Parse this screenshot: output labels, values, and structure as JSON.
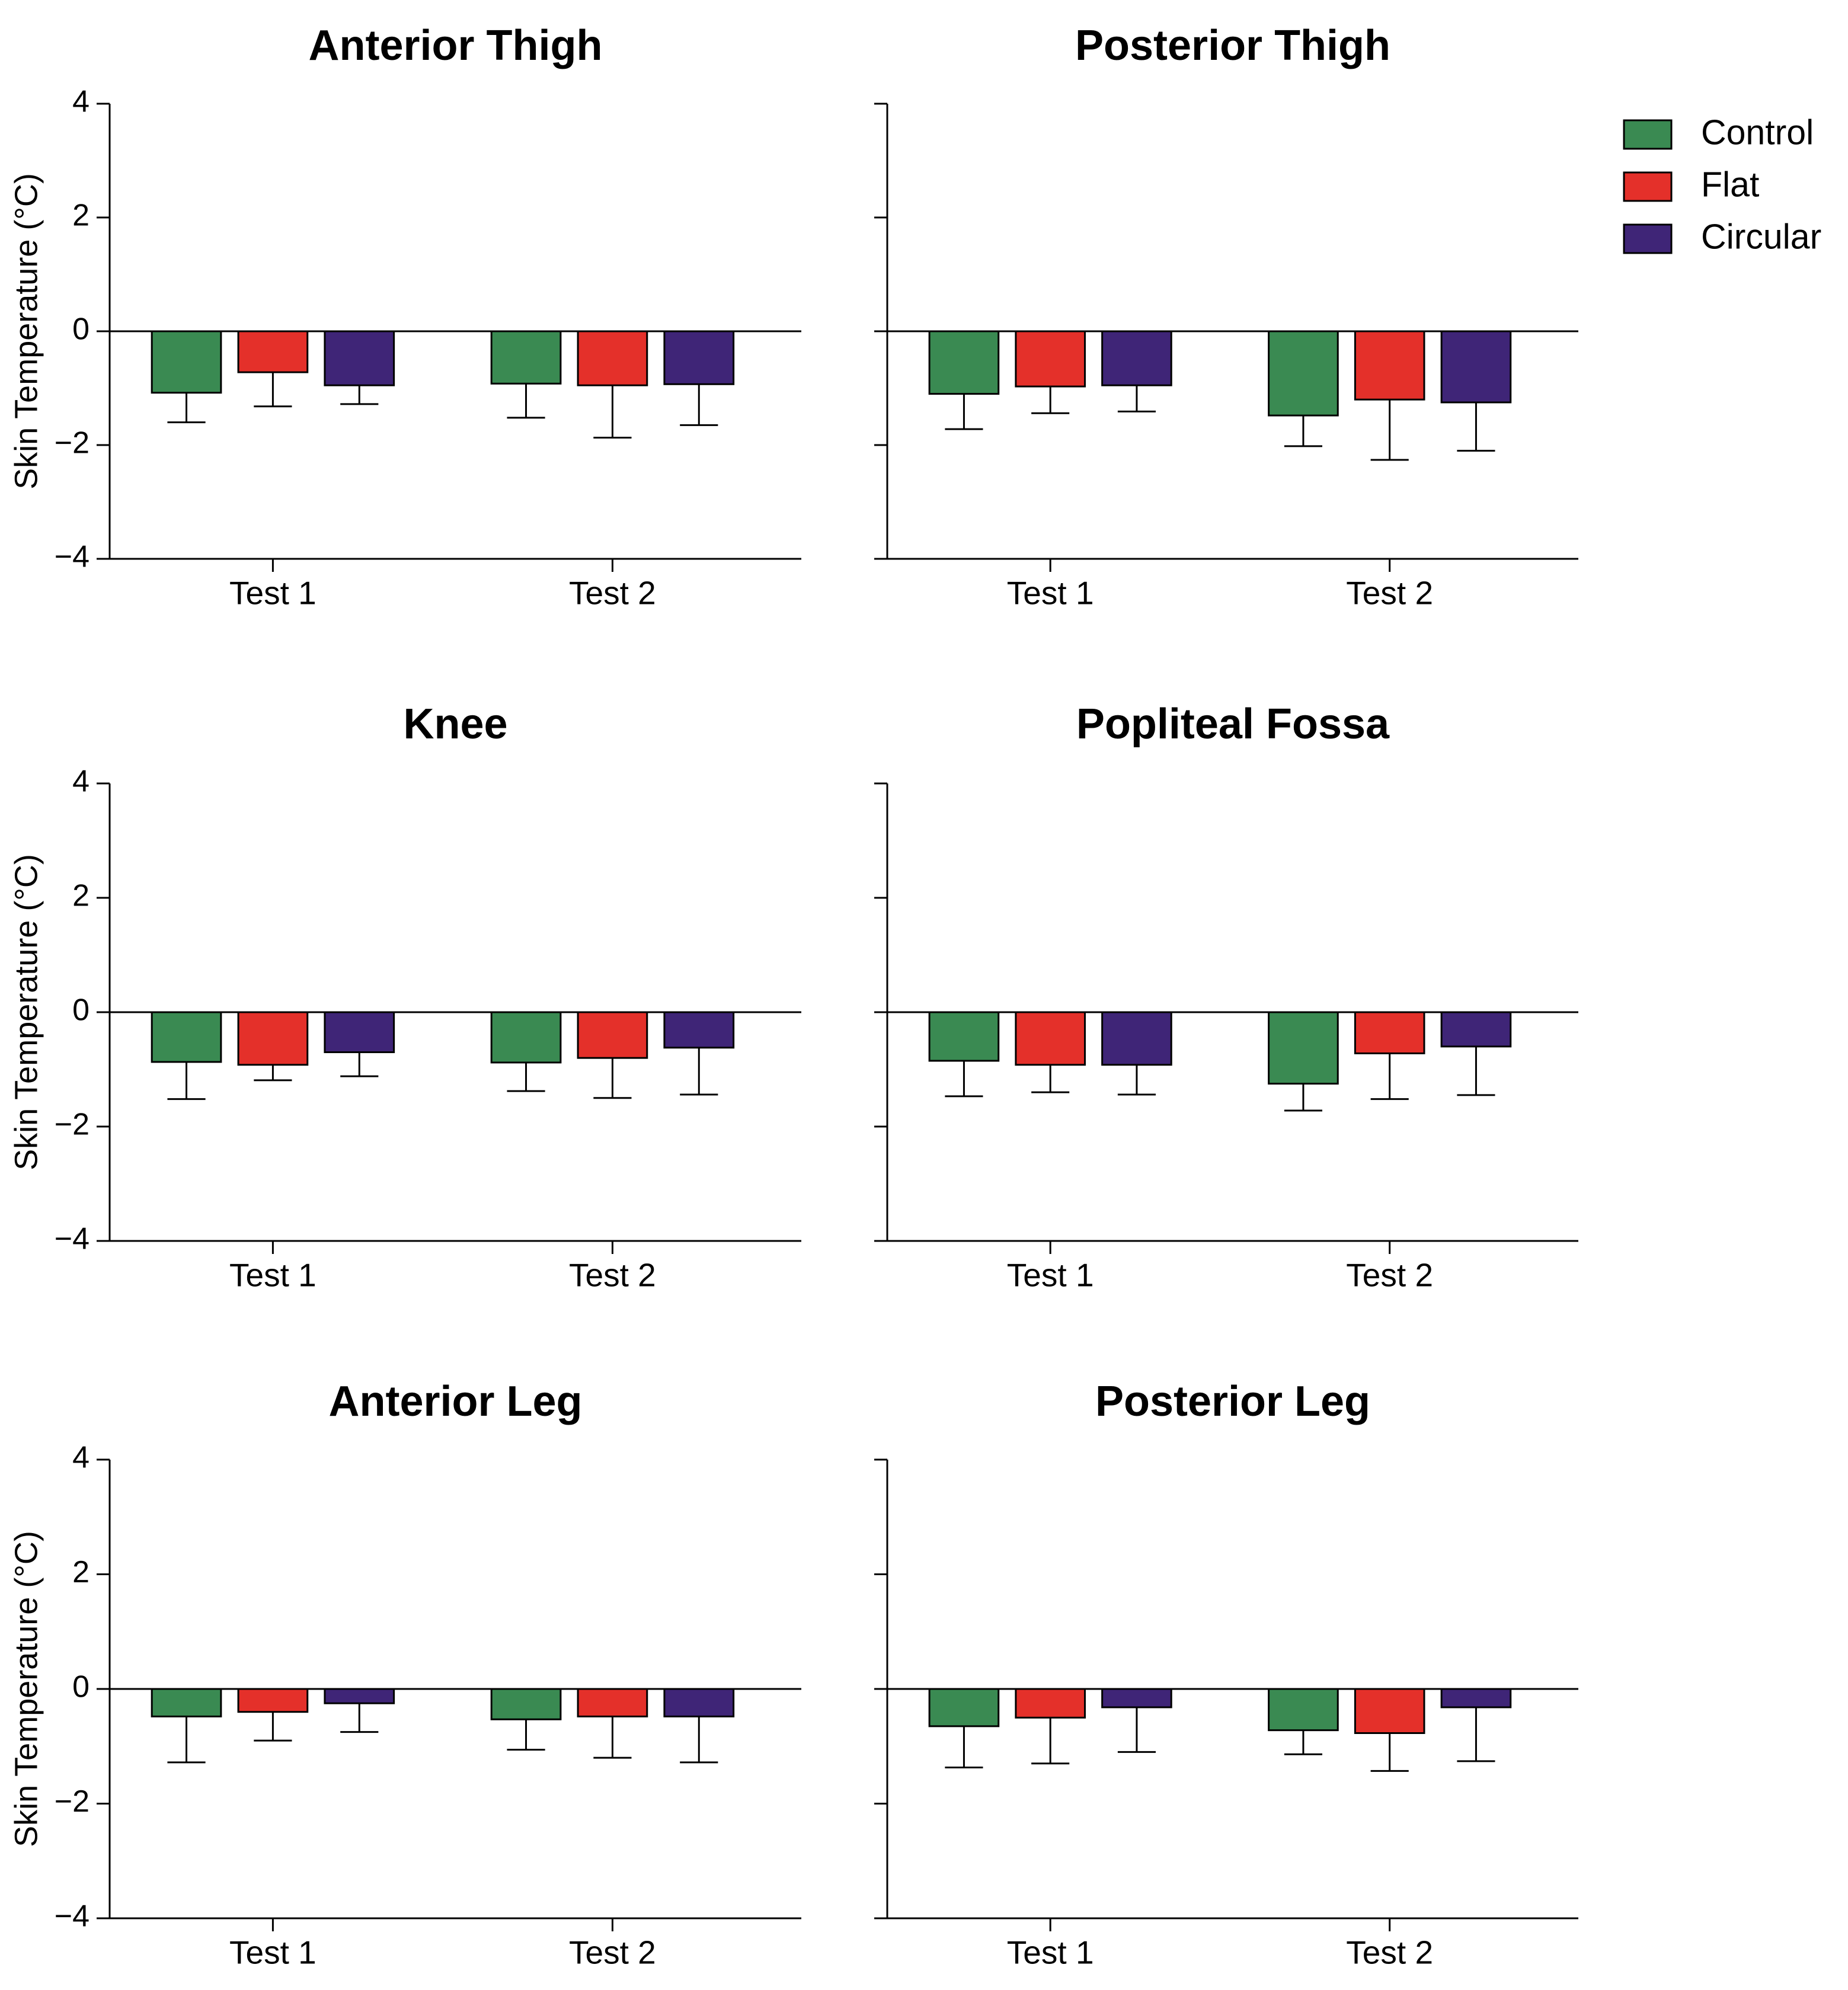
{
  "chart_data": {
    "type": "bar",
    "layout": "3x2 grid of panels",
    "ylabel": "Skin Temperature (°C)",
    "ylim": [
      -4,
      4
    ],
    "yticks": [
      4,
      2,
      0,
      -2,
      -4
    ],
    "ytick_labels": [
      "4",
      "2",
      "0",
      "−2",
      "−4"
    ],
    "categories": [
      "Test 1",
      "Test 2"
    ],
    "legend": {
      "placement": "top-right",
      "entries": [
        {
          "name": "Control",
          "color": "#3a8a52"
        },
        {
          "name": "Flat",
          "color": "#e4302a"
        },
        {
          "name": "Circular",
          "color": "#3f2577"
        }
      ]
    },
    "panels": [
      {
        "title": "Anterior Thigh",
        "series": [
          {
            "name": "Control",
            "values": [
              -1.08,
              -0.92
            ],
            "errors": [
              0.52,
              0.6
            ]
          },
          {
            "name": "Flat",
            "values": [
              -0.72,
              -0.95
            ],
            "errors": [
              0.6,
              0.92
            ]
          },
          {
            "name": "Circular",
            "values": [
              -0.95,
              -0.93
            ],
            "errors": [
              0.33,
              0.72
            ]
          }
        ]
      },
      {
        "title": "Posterior Thigh",
        "series": [
          {
            "name": "Control",
            "values": [
              -1.1,
              -1.48
            ],
            "errors": [
              0.62,
              0.54
            ]
          },
          {
            "name": "Flat",
            "values": [
              -0.97,
              -1.2
            ],
            "errors": [
              0.47,
              1.06
            ]
          },
          {
            "name": "Circular",
            "values": [
              -0.95,
              -1.25
            ],
            "errors": [
              0.46,
              0.85
            ]
          }
        ]
      },
      {
        "title": "Knee",
        "series": [
          {
            "name": "Control",
            "values": [
              -0.87,
              -0.88
            ],
            "errors": [
              0.65,
              0.5
            ]
          },
          {
            "name": "Flat",
            "values": [
              -0.92,
              -0.8
            ],
            "errors": [
              0.27,
              0.7
            ]
          },
          {
            "name": "Circular",
            "values": [
              -0.7,
              -0.62
            ],
            "errors": [
              0.42,
              0.82
            ]
          }
        ]
      },
      {
        "title": "Popliteal Fossa",
        "series": [
          {
            "name": "Control",
            "values": [
              -0.85,
              -1.25
            ],
            "errors": [
              0.62,
              0.47
            ]
          },
          {
            "name": "Flat",
            "values": [
              -0.92,
              -0.72
            ],
            "errors": [
              0.48,
              0.8
            ]
          },
          {
            "name": "Circular",
            "values": [
              -0.92,
              -0.6
            ],
            "errors": [
              0.52,
              0.85
            ]
          }
        ]
      },
      {
        "title": "Anterior Leg",
        "series": [
          {
            "name": "Control",
            "values": [
              -0.48,
              -0.53
            ],
            "errors": [
              0.8,
              0.53
            ]
          },
          {
            "name": "Flat",
            "values": [
              -0.4,
              -0.48
            ],
            "errors": [
              0.5,
              0.72
            ]
          },
          {
            "name": "Circular",
            "values": [
              -0.25,
              -0.48
            ],
            "errors": [
              0.5,
              0.8
            ]
          }
        ]
      },
      {
        "title": "Posterior Leg",
        "series": [
          {
            "name": "Control",
            "values": [
              -0.65,
              -0.72
            ],
            "errors": [
              0.72,
              0.42
            ]
          },
          {
            "name": "Flat",
            "values": [
              -0.5,
              -0.77
            ],
            "errors": [
              0.8,
              0.66
            ]
          },
          {
            "name": "Circular",
            "values": [
              -0.32,
              -0.32
            ],
            "errors": [
              0.78,
              0.94
            ]
          }
        ]
      }
    ]
  }
}
